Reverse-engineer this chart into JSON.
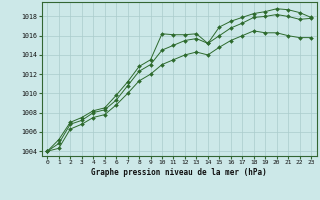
{
  "title": "Graphe pression niveau de la mer (hPa)",
  "bg_color": "#cce8e8",
  "grid_color": "#aacccc",
  "line_color": "#2d6a2d",
  "marker_color": "#2d6a2d",
  "ylim": [
    1003.5,
    1019.5
  ],
  "xlim": [
    -0.5,
    23.5
  ],
  "yticks": [
    1004,
    1006,
    1008,
    1010,
    1012,
    1014,
    1016,
    1018
  ],
  "xticks": [
    0,
    1,
    2,
    3,
    4,
    5,
    6,
    7,
    8,
    9,
    10,
    11,
    12,
    13,
    14,
    15,
    16,
    17,
    18,
    19,
    20,
    21,
    22,
    23
  ],
  "series1": [
    1004.0,
    1005.2,
    1007.0,
    1007.5,
    1008.2,
    1008.5,
    1009.8,
    1011.2,
    1012.8,
    1013.5,
    1016.2,
    1016.1,
    1016.1,
    1016.2,
    1015.2,
    1016.9,
    1017.5,
    1017.9,
    1018.3,
    1018.5,
    1018.8,
    1018.7,
    1018.4,
    1017.9
  ],
  "series2": [
    1004.0,
    1004.8,
    1006.8,
    1007.2,
    1008.0,
    1008.3,
    1009.3,
    1010.8,
    1012.3,
    1013.0,
    1014.5,
    1015.0,
    1015.5,
    1015.7,
    1015.2,
    1016.0,
    1016.8,
    1017.3,
    1017.9,
    1018.0,
    1018.2,
    1018.0,
    1017.7,
    1017.8
  ],
  "series3": [
    1004.0,
    1004.3,
    1006.3,
    1006.8,
    1007.5,
    1007.8,
    1008.8,
    1010.0,
    1011.3,
    1012.0,
    1013.0,
    1013.5,
    1014.0,
    1014.3,
    1014.0,
    1014.8,
    1015.5,
    1016.0,
    1016.5,
    1016.3,
    1016.3,
    1016.0,
    1015.8,
    1015.8
  ]
}
